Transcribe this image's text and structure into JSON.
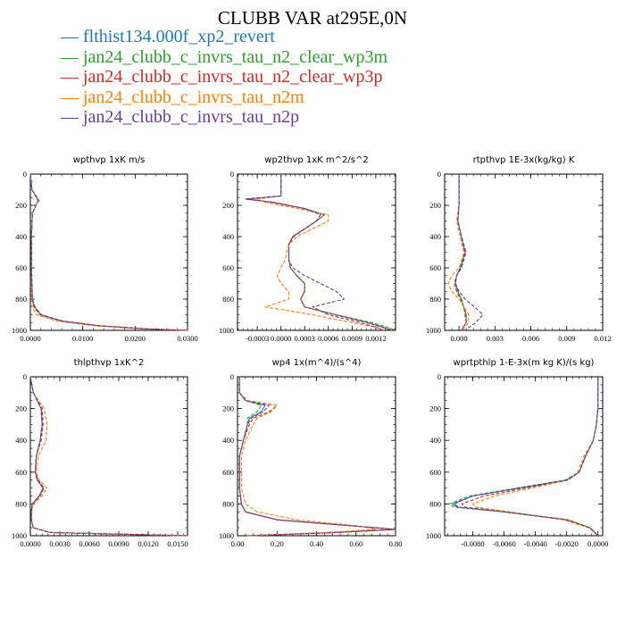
{
  "title": "CLUBB VAR at295E,0N",
  "legend": [
    {
      "label": "flthist134.000f_xp2_revert",
      "color": "#1f77b4",
      "dash": ""
    },
    {
      "label": "jan24_clubb_c_invrs_tau_n2_clear_wp3m",
      "color": "#2ca02c",
      "dash": "4,2"
    },
    {
      "label": "jan24_clubb_c_invrs_tau_n2_clear_wp3p",
      "color": "#d62728",
      "dash": "4,2"
    },
    {
      "label": "jan24_clubb_c_invrs_tau_n2m",
      "color": "#ff7f0e",
      "dash": "4,2"
    },
    {
      "label": "jan24_clubb_c_invrs_tau_n2p",
      "color": "#6a3d9a",
      "dash": "4,2"
    }
  ],
  "chart_data": [
    {
      "type": "line",
      "title": "wpthvp  1xK m/s",
      "xlim": [
        0,
        0.03
      ],
      "ylim": [
        1000,
        0
      ],
      "xticks": [
        "0.0000",
        "0.0100",
        "0.0200",
        "0.0300"
      ],
      "yticks": [
        "0",
        "200",
        "400",
        "600",
        "800",
        "1000"
      ],
      "y": [
        0,
        100,
        150,
        170,
        190,
        250,
        400,
        600,
        800,
        850,
        900,
        940,
        970,
        990,
        1000
      ],
      "series": [
        {
          "name": "flthist134.000f_xp2_revert",
          "x": [
            0,
            0.0003,
            0.0012,
            0.0015,
            0.0012,
            0.0004,
            0.0002,
            0.0002,
            0.0004,
            0.0008,
            0.002,
            0.006,
            0.013,
            0.022,
            0.03
          ]
        },
        {
          "name": "jan24_clubb_c_invrs_tau_n2_clear_wp3m",
          "x": [
            0,
            0.0003,
            0.0013,
            0.0016,
            0.0012,
            0.0004,
            0.0002,
            0.0002,
            0.0004,
            0.0008,
            0.002,
            0.006,
            0.013,
            0.022,
            0.03
          ]
        },
        {
          "name": "jan24_clubb_c_invrs_tau_n2_clear_wp3p",
          "x": [
            0,
            0.0003,
            0.0012,
            0.0015,
            0.0011,
            0.0004,
            0.0002,
            0.0002,
            0.0003,
            0.0007,
            0.0018,
            0.0058,
            0.0128,
            0.0218,
            0.03
          ]
        },
        {
          "name": "jan24_clubb_c_invrs_tau_n2m",
          "x": [
            0,
            0.0003,
            0.0014,
            0.0017,
            0.0012,
            0.0004,
            0.0002,
            0.0002,
            0.0002,
            0.0004,
            0.0012,
            0.005,
            0.012,
            0.021,
            0.03
          ]
        },
        {
          "name": "jan24_clubb_c_invrs_tau_n2p",
          "x": [
            0,
            0.0003,
            0.0012,
            0.0015,
            0.0012,
            0.0004,
            0.0002,
            0.0002,
            0.0004,
            0.0009,
            0.0021,
            0.0062,
            0.0132,
            0.0222,
            0.03
          ]
        }
      ]
    },
    {
      "type": "line",
      "title": "wp2thvp  1xK m^2/s^2",
      "xlim": [
        -0.00055,
        0.00145
      ],
      "ylim": [
        1000,
        0
      ],
      "xticks": [
        "-0.0003",
        "0.0000",
        "0.0003",
        "0.0006",
        "0.0009",
        "0.0012"
      ],
      "yticks": [
        "0",
        "200",
        "400",
        "600",
        "800",
        "1000"
      ],
      "y": [
        0,
        140,
        160,
        180,
        220,
        260,
        300,
        400,
        450,
        550,
        600,
        650,
        700,
        750,
        800,
        850,
        900,
        950,
        980,
        1000
      ],
      "series": [
        {
          "name": "flthist134.000f_xp2_revert",
          "x": [
            0,
            0,
            -0.00045,
            -0.0001,
            0.0003,
            0.00055,
            0.00045,
            0.00015,
            0.0001,
            0.0001,
            0.00012,
            0.0002,
            0.0003,
            0.0003,
            0.00025,
            0.0003,
            0.0007,
            0.0011,
            0.0013,
            0.0014
          ]
        },
        {
          "name": "jan24_clubb_c_invrs_tau_n2_clear_wp3m",
          "x": [
            0,
            0,
            -0.00045,
            -0.0001,
            0.0003,
            0.0005,
            0.00045,
            0.00015,
            0.0001,
            0.0001,
            0.00012,
            0.0002,
            0.0003,
            0.0003,
            0.00025,
            0.0003,
            0.0007,
            0.00115,
            0.00135,
            0.00145
          ]
        },
        {
          "name": "jan24_clubb_c_invrs_tau_n2_clear_wp3p",
          "x": [
            0,
            0,
            -0.0004,
            -0.00012,
            0.00028,
            0.00055,
            0.00045,
            0.00016,
            0.0001,
            0.0001,
            0.00012,
            0.0002,
            0.0003,
            0.0003,
            0.00025,
            0.0003,
            0.00068,
            0.00108,
            0.00128,
            0.0014
          ]
        },
        {
          "name": "jan24_clubb_c_invrs_tau_n2m",
          "x": [
            0,
            0,
            -0.0003,
            -0.0002,
            0.0002,
            0.0006,
            0.0006,
            0.0002,
            0.0001,
            5e-05,
            0.0,
            -5e-05,
            0.0,
            0.0001,
            0.0001,
            -0.0002,
            0.0004,
            0.0009,
            0.0012,
            0.0013
          ]
        },
        {
          "name": "jan24_clubb_c_invrs_tau_n2p",
          "x": [
            0,
            0,
            -0.00045,
            -0.0001,
            0.0003,
            0.0005,
            0.00045,
            0.00015,
            0.0001,
            0.0001,
            0.00015,
            0.0003,
            0.0005,
            0.0007,
            0.0008,
            0.0004,
            0.0006,
            0.001,
            0.0012,
            0.0013
          ]
        }
      ]
    },
    {
      "type": "line",
      "title": "rtpthvp  1E-3x(kg/kg) K",
      "xlim": [
        -0.0012,
        0.012
      ],
      "ylim": [
        1000,
        0
      ],
      "xticks": [
        "0.000",
        "0.003",
        "0.006",
        "0.009",
        "0.012"
      ],
      "yticks": [
        "0",
        "200",
        "400",
        "600",
        "800",
        "1000"
      ],
      "y": [
        0,
        200,
        300,
        400,
        500,
        600,
        650,
        700,
        750,
        800,
        850,
        900,
        950,
        1000
      ],
      "series": [
        {
          "name": "flthist134.000f_xp2_revert",
          "x": [
            0,
            0,
            -0.0001,
            0.0002,
            0.0005,
            0.0001,
            -0.0002,
            -0.0003,
            -0.0001,
            0.0002,
            0.0004,
            0.0006,
            0.0006,
            0.0002
          ]
        },
        {
          "name": "jan24_clubb_c_invrs_tau_n2_clear_wp3m",
          "x": [
            0,
            0,
            -0.0001,
            0.0002,
            0.0005,
            0.0001,
            -0.0002,
            -0.0003,
            -0.0001,
            0.0002,
            0.0004,
            0.0006,
            0.0006,
            0.0002
          ]
        },
        {
          "name": "jan24_clubb_c_invrs_tau_n2_clear_wp3p",
          "x": [
            0,
            0,
            -0.0001,
            0.0002,
            0.0005,
            0.0002,
            -0.0002,
            -0.0004,
            -0.0002,
            0.0001,
            0.0004,
            0.0005,
            0.0006,
            0.0002
          ]
        },
        {
          "name": "jan24_clubb_c_invrs_tau_n2m",
          "x": [
            0,
            0,
            -0.0002,
            0.0001,
            0.0004,
            0.0,
            -0.0006,
            -0.0009,
            -0.0006,
            0.0,
            0.0004,
            0.0008,
            0.0008,
            0.0003
          ]
        },
        {
          "name": "jan24_clubb_c_invrs_tau_n2p",
          "x": [
            0,
            0,
            -0.0001,
            0.0002,
            0.0006,
            0.0002,
            -0.0002,
            -0.0003,
            0.0,
            0.0005,
            0.0013,
            0.002,
            0.0014,
            0.0005
          ]
        }
      ]
    },
    {
      "type": "line",
      "title": "thlpthvp  1xK^2",
      "xlim": [
        0,
        0.016
      ],
      "ylim": [
        1000,
        0
      ],
      "xticks": [
        "0.0000",
        "0.0030",
        "0.0060",
        "0.0090",
        "0.0120",
        "0.0150"
      ],
      "yticks": [
        "0",
        "200",
        "400",
        "600",
        "800",
        "1000"
      ],
      "y": [
        0,
        100,
        200,
        300,
        400,
        500,
        600,
        650,
        700,
        750,
        800,
        850,
        900,
        950,
        980,
        1000
      ],
      "series": [
        {
          "name": "flthist134.000f_xp2_revert",
          "x": [
            0,
            0.0003,
            0.0011,
            0.0012,
            0.001,
            0.0006,
            0.0005,
            0.0007,
            0.0013,
            0.0009,
            0.0002,
            0.0001,
            0.0001,
            0.0003,
            0.002,
            0.016
          ]
        },
        {
          "name": "jan24_clubb_c_invrs_tau_n2_clear_wp3m",
          "x": [
            0,
            0.0003,
            0.0011,
            0.0012,
            0.001,
            0.0006,
            0.0005,
            0.0007,
            0.0013,
            0.0009,
            0.0002,
            0.0001,
            0.0001,
            0.0003,
            0.002,
            0.016
          ]
        },
        {
          "name": "jan24_clubb_c_invrs_tau_n2_clear_wp3p",
          "x": [
            0,
            0.0003,
            0.0012,
            0.0013,
            0.0011,
            0.0006,
            0.0005,
            0.0008,
            0.0014,
            0.001,
            0.0002,
            0.0001,
            0.0001,
            0.0003,
            0.002,
            0.016
          ]
        },
        {
          "name": "jan24_clubb_c_invrs_tau_n2m",
          "x": [
            0,
            0.0003,
            0.0014,
            0.0017,
            0.0016,
            0.0008,
            0.0006,
            0.0009,
            0.0017,
            0.0012,
            0.0003,
            0.0001,
            0.0001,
            0.0003,
            0.002,
            0.016
          ]
        },
        {
          "name": "jan24_clubb_c_invrs_tau_n2p",
          "x": [
            0,
            0.0003,
            0.0011,
            0.0012,
            0.001,
            0.0006,
            0.0005,
            0.0007,
            0.0013,
            0.0009,
            0.0002,
            0.0001,
            0.0001,
            0.0003,
            0.002,
            0.016
          ]
        }
      ]
    },
    {
      "type": "line",
      "title": "wp4  1x(m^4)/(s^4)",
      "xlim": [
        0,
        0.8
      ],
      "ylim": [
        1000,
        0
      ],
      "xticks": [
        "0.00",
        "0.20",
        "0.40",
        "0.60",
        "0.80"
      ],
      "yticks": [
        "0",
        "200",
        "400",
        "600",
        "800",
        "1000"
      ],
      "y": [
        0,
        100,
        150,
        180,
        220,
        260,
        300,
        400,
        500,
        600,
        700,
        800,
        850,
        900,
        940,
        960,
        980,
        1000
      ],
      "series": [
        {
          "name": "flthist134.000f_xp2_revert",
          "x": [
            0.01,
            0.01,
            0.04,
            0.14,
            0.12,
            0.06,
            0.05,
            0.03,
            0.01,
            0.01,
            0.01,
            0.02,
            0.04,
            0.2,
            0.6,
            0.8,
            0.5,
            0.05
          ]
        },
        {
          "name": "jan24_clubb_c_invrs_tau_n2_clear_wp3m",
          "x": [
            0.01,
            0.01,
            0.04,
            0.12,
            0.1,
            0.05,
            0.05,
            0.03,
            0.01,
            0.01,
            0.01,
            0.02,
            0.04,
            0.2,
            0.6,
            0.8,
            0.5,
            0.05
          ]
        },
        {
          "name": "jan24_clubb_c_invrs_tau_n2_clear_wp3p",
          "x": [
            0.01,
            0.01,
            0.05,
            0.2,
            0.16,
            0.08,
            0.06,
            0.03,
            0.01,
            0.01,
            0.01,
            0.02,
            0.04,
            0.2,
            0.6,
            0.8,
            0.5,
            0.05
          ]
        },
        {
          "name": "jan24_clubb_c_invrs_tau_n2m",
          "x": [
            0.01,
            0.01,
            0.05,
            0.2,
            0.17,
            0.1,
            0.08,
            0.04,
            0.02,
            0.02,
            0.02,
            0.04,
            0.1,
            0.3,
            0.62,
            0.7,
            0.45,
            0.05
          ]
        },
        {
          "name": "jan24_clubb_c_invrs_tau_n2p",
          "x": [
            0.01,
            0.01,
            0.04,
            0.16,
            0.13,
            0.07,
            0.05,
            0.03,
            0.01,
            0.01,
            0.01,
            0.02,
            0.04,
            0.2,
            0.6,
            0.8,
            0.5,
            0.05
          ]
        }
      ]
    },
    {
      "type": "line",
      "title": "wprtpthlp  1-E-3x(m kg K)/(s kg)",
      "xlim": [
        -0.0098,
        0.0003
      ],
      "ylim": [
        1000,
        0
      ],
      "xticks": [
        "-0.0080",
        "-0.0060",
        "-0.0040",
        "-0.0020",
        "0.0000"
      ],
      "yticks": [
        "0",
        "200",
        "400",
        "600",
        "800",
        "1000"
      ],
      "y": [
        0,
        200,
        300,
        400,
        500,
        600,
        650,
        700,
        750,
        800,
        820,
        850,
        900,
        950,
        1000
      ],
      "series": [
        {
          "name": "flthist134.000f_xp2_revert",
          "x": [
            0,
            0,
            -0.0001,
            -0.0003,
            -0.0008,
            -0.0012,
            -0.002,
            -0.005,
            -0.008,
            -0.0093,
            -0.009,
            -0.006,
            -0.002,
            -0.0005,
            0
          ]
        },
        {
          "name": "jan24_clubb_c_invrs_tau_n2_clear_wp3m",
          "x": [
            0,
            0,
            -0.0001,
            -0.0003,
            -0.0008,
            -0.0012,
            -0.0021,
            -0.0052,
            -0.0082,
            -0.0095,
            -0.0092,
            -0.006,
            -0.002,
            -0.0005,
            0
          ]
        },
        {
          "name": "jan24_clubb_c_invrs_tau_n2_clear_wp3p",
          "x": [
            0,
            0,
            -0.0001,
            -0.0003,
            -0.0008,
            -0.0012,
            -0.0019,
            -0.0046,
            -0.0073,
            -0.0087,
            -0.0085,
            -0.0058,
            -0.0019,
            -0.0005,
            0
          ]
        },
        {
          "name": "jan24_clubb_c_invrs_tau_n2m",
          "x": [
            0,
            0,
            -0.0001,
            -0.0003,
            -0.0009,
            -0.0013,
            -0.0019,
            -0.0042,
            -0.0066,
            -0.008,
            -0.0078,
            -0.0056,
            -0.0022,
            -0.0006,
            0
          ]
        },
        {
          "name": "jan24_clubb_c_invrs_tau_n2p",
          "x": [
            0,
            0,
            -0.0001,
            -0.0003,
            -0.0008,
            -0.0012,
            -0.002,
            -0.005,
            -0.008,
            -0.0092,
            -0.0089,
            -0.006,
            -0.002,
            -0.0005,
            0
          ]
        }
      ]
    }
  ]
}
